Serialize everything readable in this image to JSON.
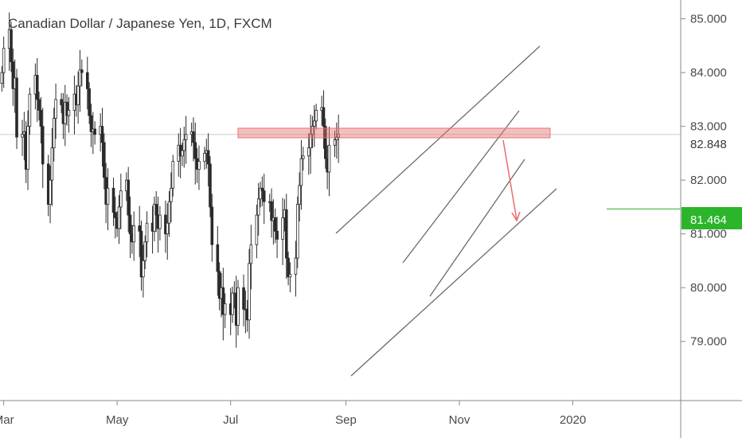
{
  "chart_data": {
    "type": "candlestick",
    "title": "Canadian Dollar / Japanese Yen, 1D, FXCM",
    "xlabel": "",
    "ylabel": "",
    "y_ticks": [
      "85.000",
      "84.000",
      "83.000",
      "82.000",
      "81.000",
      "80.000",
      "79.000"
    ],
    "y_tick_values": [
      85,
      84,
      83,
      82,
      81,
      80,
      79
    ],
    "ylim": [
      77.9,
      85.35
    ],
    "x_ticks": [
      "Mar",
      "May",
      "Jul",
      "Sep",
      "Nov",
      "2020"
    ],
    "x_tick_dates": [
      "2019-03-01",
      "2019-05-01",
      "2019-07-01",
      "2019-09-01",
      "2019-11-01",
      "2020-01-01"
    ],
    "xlim": [
      "2019-02-27",
      "2020-02-28"
    ],
    "current_price": {
      "label": "82.848",
      "value": 82.848,
      "color": "#ffffff"
    },
    "target_price": {
      "label": "81.464",
      "value": 81.464,
      "color": "#2bb52b"
    },
    "candle_color": "#2a2a2a",
    "closes": [
      84.0,
      84.45,
      84.8,
      84.2,
      83.7,
      83.9,
      82.8,
      82.85,
      82.9,
      82.2,
      83.0,
      83.6,
      83.95,
      83.5,
      83.3,
      83.0,
      82.3,
      81.55,
      82.0,
      82.6,
      83.15,
      83.5,
      83.4,
      83.05,
      83.45,
      83.2,
      83.3,
      83.6,
      83.4,
      83.75,
      84.05,
      84.0,
      83.7,
      83.2,
      82.9,
      82.95,
      82.85,
      83.0,
      82.7,
      82.05,
      81.55,
      81.85,
      81.4,
      81.3,
      81.1,
      81.5,
      81.8,
      82.0,
      81.35,
      81.0,
      80.85,
      81.15,
      81.05,
      80.2,
      80.5,
      80.85,
      81.2,
      81.05,
      81.55,
      81.35,
      81.1,
      81.35,
      81.0,
      81.2,
      81.6,
      81.85,
      82.35,
      82.65,
      82.45,
      82.55,
      82.75,
      82.85,
      82.9,
      82.7,
      82.4,
      82.2,
      82.35,
      82.5,
      82.55,
      82.3,
      81.5,
      80.8,
      80.3,
      79.8,
      80.0,
      79.5,
      79.7,
      79.5,
      79.9,
      79.9,
      79.3,
      80.0,
      79.6,
      79.6,
      79.4,
      80.45,
      80.8,
      81.35,
      81.65,
      81.85,
      81.8,
      81.6,
      81.6,
      81.25,
      81.3,
      81.05,
      80.9,
      81.3,
      81.45,
      80.55,
      80.2,
      80.25,
      80.55,
      81.55,
      81.9,
      82.4,
      82.45,
      82.6,
      82.85,
      83.0,
      83.1,
      83.3,
      83.35,
      83.0,
      82.4,
      82.15,
      82.65,
      82.75,
      82.8,
      82.85
    ]
  },
  "annotations": {
    "zone_color": "#e57373",
    "arrow_color": "#ef6b6b",
    "channel_color": "#6b6b6b",
    "price_line_color": "#cccccc"
  }
}
